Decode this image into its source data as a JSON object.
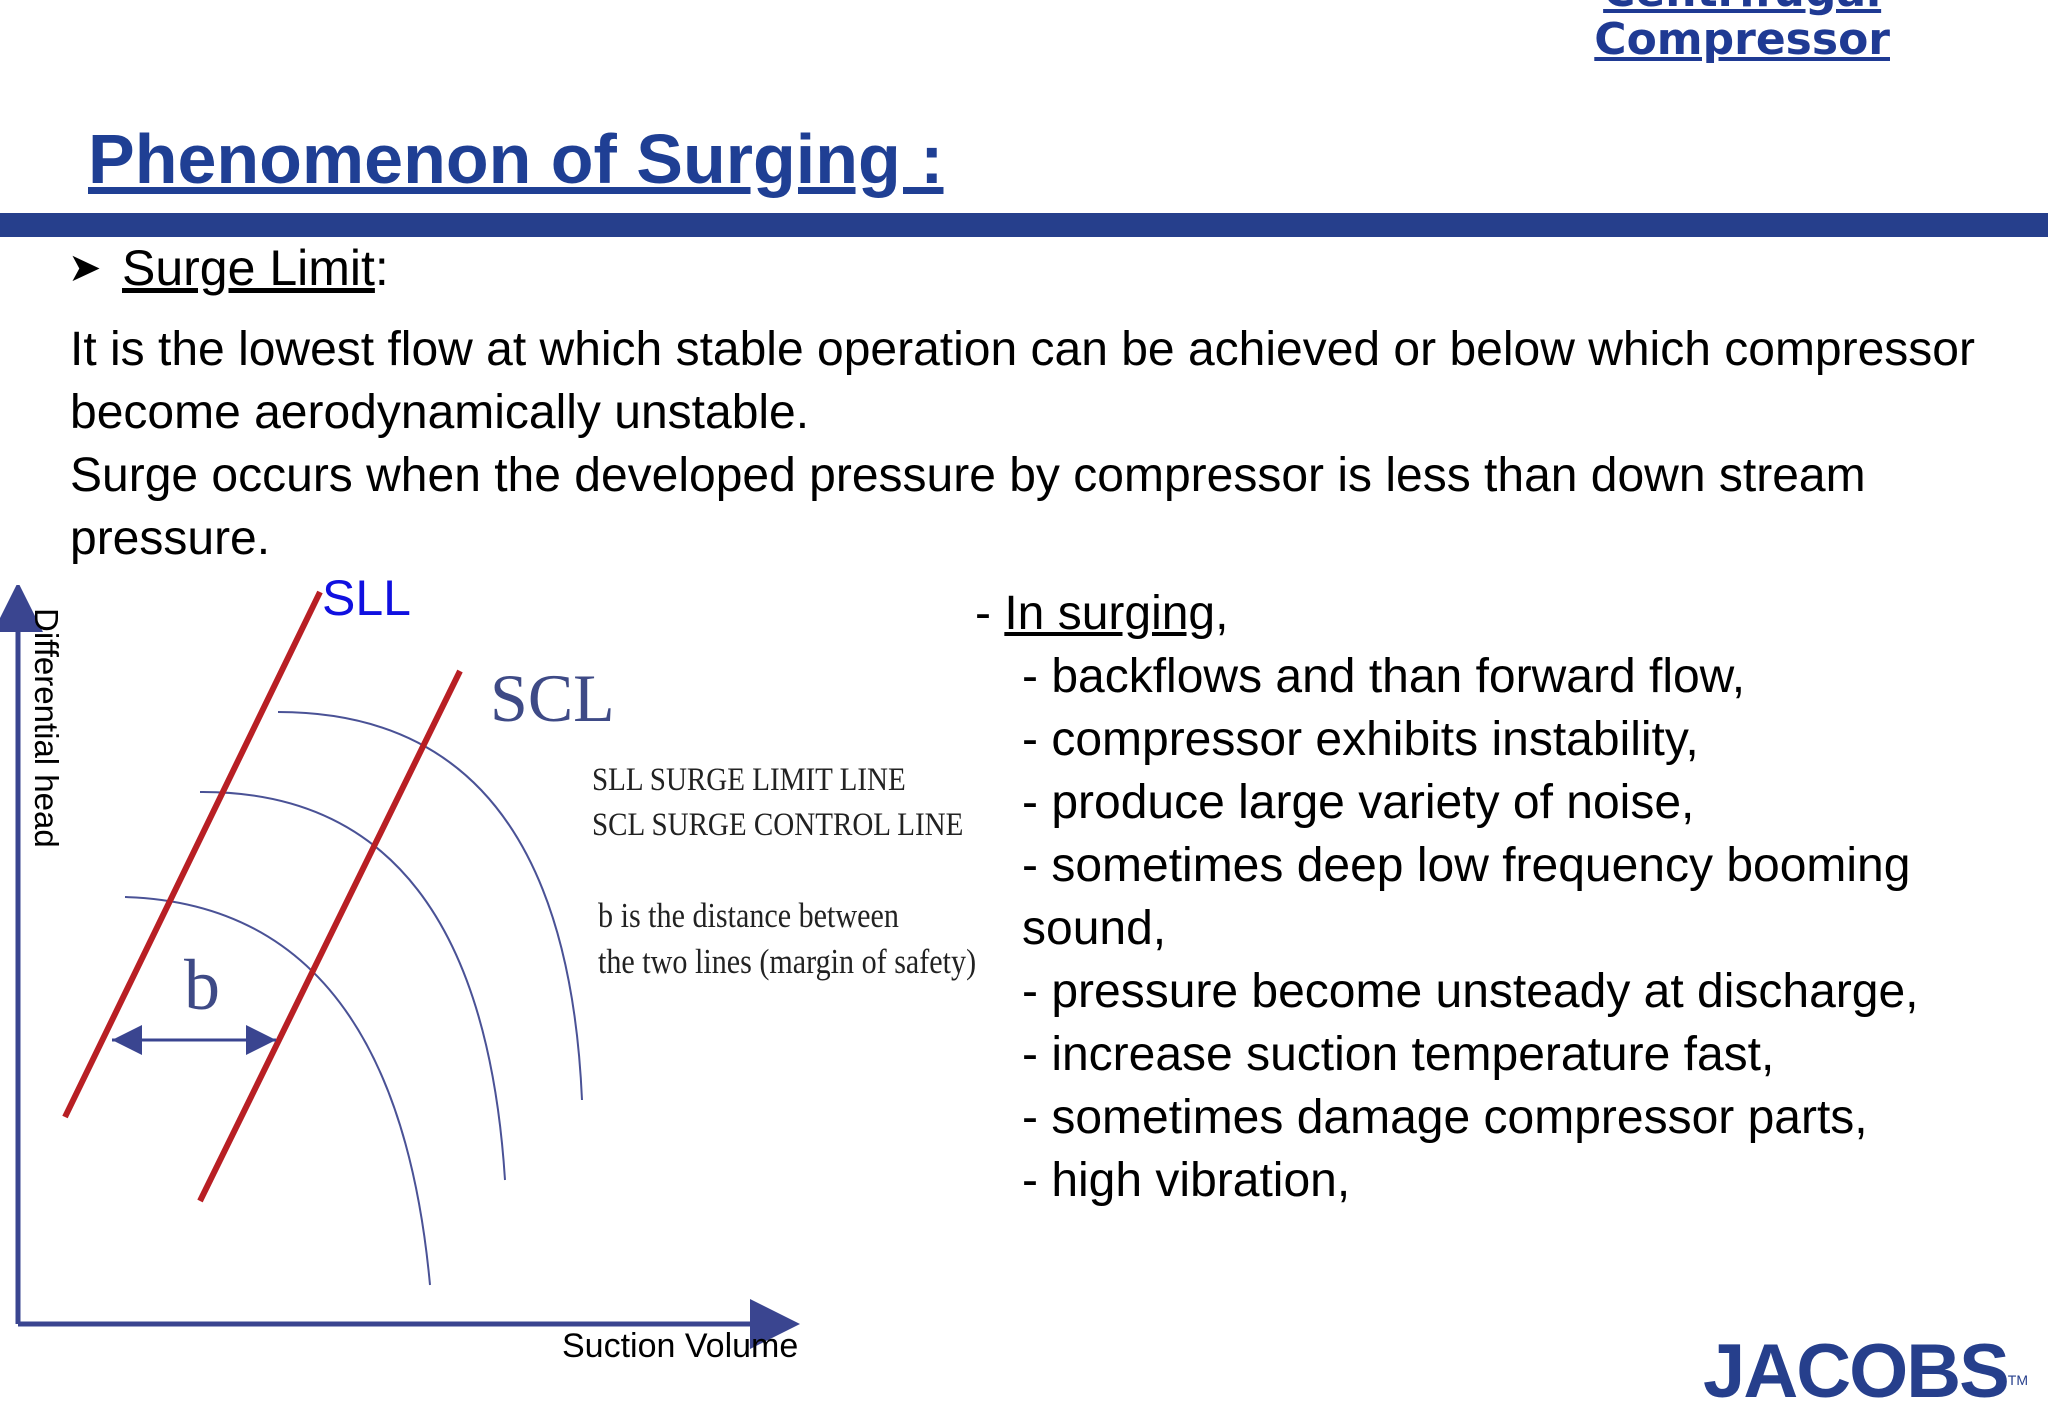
{
  "header": {
    "link_line1": "Centrifugal",
    "link_line2": "Compressor"
  },
  "title": "Phenomenon of Surging :",
  "bullet": {
    "label": "Surge Limit",
    "suffix": ":"
  },
  "paragraph": [
    "It is the lowest flow at which stable operation can be achieved or below which compressor become aerodynamically unstable.",
    "Surge occurs when the developed pressure by compressor is less than down stream pressure."
  ],
  "diagram": {
    "y_axis_label": "Differential head",
    "x_axis_label": "Suction Volume",
    "sll_label": "SLL",
    "scl_label": "SCL",
    "b_label": "b",
    "legend": [
      "SLL SURGE LIMIT LINE",
      "SCL SURGE CONTROL LINE"
    ],
    "note": [
      "b is the distance between",
      "the two lines (margin of safety)"
    ],
    "colors": {
      "axis": "#3a4590",
      "lines": "#b81f24",
      "curves": "#4a5296"
    }
  },
  "surging": {
    "prefix": "- ",
    "heading": "In surging",
    "heading_suffix": ",",
    "items": [
      "- backflows and than forward flow,",
      "- compressor exhibits instability,",
      "- produce large variety of noise,",
      "- sometimes deep low frequency booming",
      "sound,",
      "- pressure become unsteady at discharge,",
      "- increase suction temperature fast,",
      "- sometimes damage compressor parts,",
      "- high vibration,"
    ]
  },
  "logo": {
    "text": "JACOBS",
    "tm": "TM"
  },
  "colors": {
    "title": "#1f3f94",
    "rule": "#263f8c",
    "logo": "#263f8c"
  }
}
